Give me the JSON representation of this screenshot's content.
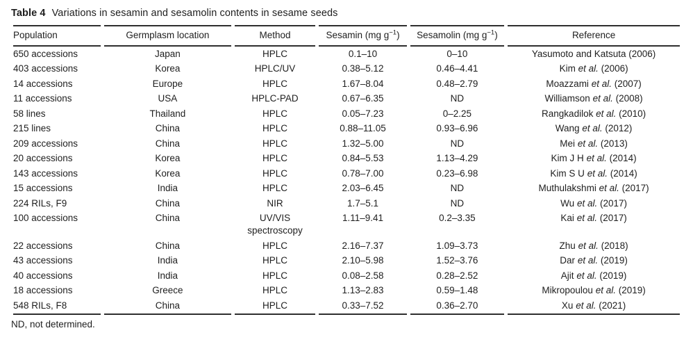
{
  "page": {
    "background": "#ffffff",
    "text_color": "#1e1e1e",
    "rule_color": "#2e2e2e"
  },
  "title": {
    "label": "Table 4",
    "caption": "Variations in sesamin and sesamolin contents in sesame seeds"
  },
  "table": {
    "columns": [
      {
        "label": "Population"
      },
      {
        "label": "Germplasm location"
      },
      {
        "label": "Method"
      },
      {
        "pre": "Sesamin (mg g",
        "sup": "−1",
        "post": ")"
      },
      {
        "pre": "Sesamolin (mg g",
        "sup": "−1",
        "post": ")"
      },
      {
        "label": "Reference"
      }
    ],
    "rows": [
      {
        "population": "650 accessions",
        "location": "Japan",
        "method": "HPLC",
        "sesamin": "0.1–10",
        "sesamolin": "0–10",
        "reference": [
          {
            "text": "Yasumoto and Katsuta (2006)",
            "italic": false
          }
        ]
      },
      {
        "population": "403 accessions",
        "location": "Korea",
        "method": "HPLC/UV",
        "sesamin": "0.38–5.12",
        "sesamolin": "0.46–4.41",
        "reference": [
          {
            "text": "Kim ",
            "italic": false
          },
          {
            "text": "et al.",
            "italic": true
          },
          {
            "text": " (2006)",
            "italic": false
          }
        ]
      },
      {
        "population": "14 accessions",
        "location": "Europe",
        "method": "HPLC",
        "sesamin": "1.67–8.04",
        "sesamolin": "0.48–2.79",
        "reference": [
          {
            "text": "Moazzami ",
            "italic": false
          },
          {
            "text": "et al.",
            "italic": true
          },
          {
            "text": " (2007)",
            "italic": false
          }
        ]
      },
      {
        "population": "11 accessions",
        "location": "USA",
        "method": "HPLC-PAD",
        "sesamin": "0.67–6.35",
        "sesamolin": "ND",
        "reference": [
          {
            "text": "Williamson ",
            "italic": false
          },
          {
            "text": "et al.",
            "italic": true
          },
          {
            "text": " (2008)",
            "italic": false
          }
        ]
      },
      {
        "population": "58 lines",
        "location": "Thailand",
        "method": "HPLC",
        "sesamin": "0.05–7.23",
        "sesamolin": "0–2.25",
        "reference": [
          {
            "text": "Rangkadilok ",
            "italic": false
          },
          {
            "text": "et al.",
            "italic": true
          },
          {
            "text": " (2010)",
            "italic": false
          }
        ]
      },
      {
        "population": "215 lines",
        "location": "China",
        "method": "HPLC",
        "sesamin": "0.88–11.05",
        "sesamolin": "0.93–6.96",
        "reference": [
          {
            "text": "Wang ",
            "italic": false
          },
          {
            "text": "et al.",
            "italic": true
          },
          {
            "text": " (2012)",
            "italic": false
          }
        ]
      },
      {
        "population": "209 accessions",
        "location": "China",
        "method": "HPLC",
        "sesamin": "1.32–5.00",
        "sesamolin": "ND",
        "reference": [
          {
            "text": "Mei ",
            "italic": false
          },
          {
            "text": "et al.",
            "italic": true
          },
          {
            "text": " (2013)",
            "italic": false
          }
        ]
      },
      {
        "population": "20 accessions",
        "location": "Korea",
        "method": "HPLC",
        "sesamin": "0.84–5.53",
        "sesamolin": "1.13–4.29",
        "reference": [
          {
            "text": "Kim J H ",
            "italic": false
          },
          {
            "text": "et al.",
            "italic": true
          },
          {
            "text": " (2014)",
            "italic": false
          }
        ]
      },
      {
        "population": "143 accessions",
        "location": "Korea",
        "method": "HPLC",
        "sesamin": "0.78–7.00",
        "sesamolin": "0.23–6.98",
        "reference": [
          {
            "text": "Kim S U ",
            "italic": false
          },
          {
            "text": "et al.",
            "italic": true
          },
          {
            "text": " (2014)",
            "italic": false
          }
        ]
      },
      {
        "population": "15 accessions",
        "location": "India",
        "method": "HPLC",
        "sesamin": "2.03–6.45",
        "sesamolin": "ND",
        "reference": [
          {
            "text": "Muthulakshmi ",
            "italic": false
          },
          {
            "text": "et al.",
            "italic": true
          },
          {
            "text": " (2017)",
            "italic": false
          }
        ]
      },
      {
        "population": "224 RILs, F9",
        "location": "China",
        "method": "NIR",
        "sesamin": "1.7–5.1",
        "sesamolin": "ND",
        "reference": [
          {
            "text": "Wu ",
            "italic": false
          },
          {
            "text": "et al.",
            "italic": true
          },
          {
            "text": " (2017)",
            "italic": false
          }
        ]
      },
      {
        "population": "100 accessions",
        "location": "China",
        "method": "UV/VIS\nspectroscopy",
        "sesamin": "1.11–9.41",
        "sesamolin": "0.2–3.35",
        "reference": [
          {
            "text": "Kai ",
            "italic": false
          },
          {
            "text": "et al.",
            "italic": true
          },
          {
            "text": " (2017)",
            "italic": false
          }
        ]
      },
      {
        "population": "22 accessions",
        "location": "China",
        "method": "HPLC",
        "sesamin": "2.16–7.37",
        "sesamolin": "1.09–3.73",
        "reference": [
          {
            "text": "Zhu ",
            "italic": false
          },
          {
            "text": "et al.",
            "italic": true
          },
          {
            "text": " (2018)",
            "italic": false
          }
        ]
      },
      {
        "population": "43 accessions",
        "location": "India",
        "method": "HPLC",
        "sesamin": "2.10–5.98",
        "sesamolin": "1.52–3.76",
        "reference": [
          {
            "text": "Dar ",
            "italic": false
          },
          {
            "text": "et al.",
            "italic": true
          },
          {
            "text": " (2019)",
            "italic": false
          }
        ]
      },
      {
        "population": "40 accessions",
        "location": "India",
        "method": "HPLC",
        "sesamin": "0.08–2.58",
        "sesamolin": "0.28–2.52",
        "reference": [
          {
            "text": "Ajit ",
            "italic": false
          },
          {
            "text": "et al.",
            "italic": true
          },
          {
            "text": " (2019)",
            "italic": false
          }
        ]
      },
      {
        "population": "18 accessions",
        "location": "Greece",
        "method": "HPLC",
        "sesamin": "1.13–2.83",
        "sesamolin": "0.59–1.48",
        "reference": [
          {
            "text": "Mikropoulou ",
            "italic": false
          },
          {
            "text": "et al.",
            "italic": true
          },
          {
            "text": " (2019)",
            "italic": false
          }
        ]
      },
      {
        "population": "548 RILs, F8",
        "location": "China",
        "method": "HPLC",
        "sesamin": "0.33–7.52",
        "sesamolin": "0.36–2.70",
        "reference": [
          {
            "text": "Xu ",
            "italic": false
          },
          {
            "text": "et al.",
            "italic": true
          },
          {
            "text": " (2021)",
            "italic": false
          }
        ]
      }
    ]
  },
  "footnote": "ND, not determined."
}
